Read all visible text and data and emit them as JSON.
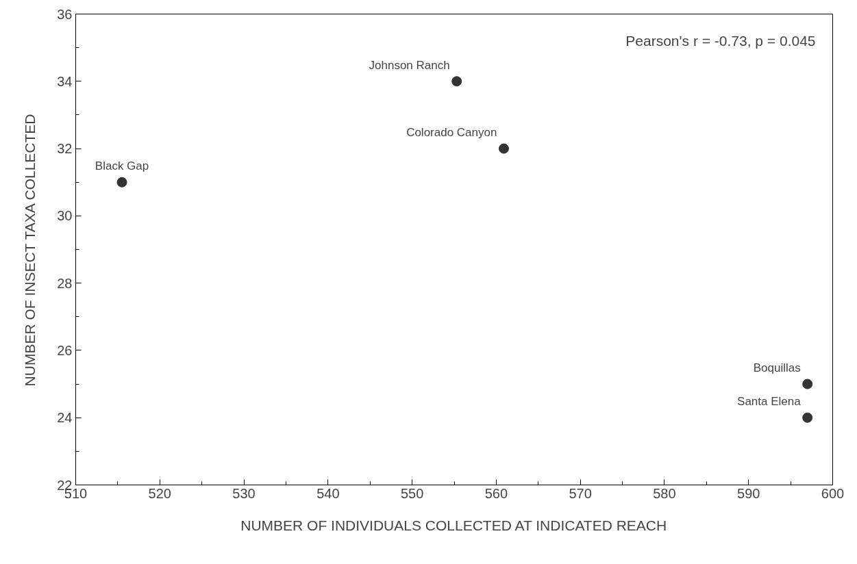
{
  "chart_data": {
    "type": "scatter",
    "xlabel": "NUMBER OF INDIVIDUALS COLLECTED AT INDICATED REACH",
    "ylabel": "NUMBER OF INSECT TAXA COLLECTED",
    "x": [
      515.5,
      555.3,
      560.9,
      597.0,
      597.0
    ],
    "series": [
      {
        "color": "#333333",
        "values": [
          31,
          34,
          32,
          25,
          24
        ]
      }
    ],
    "xlim": [
      510,
      600
    ],
    "xticks": [
      510,
      520,
      530,
      540,
      550,
      560,
      570,
      580,
      590,
      600
    ],
    "ylim": [
      22,
      36
    ],
    "yticks": [
      22,
      24,
      26,
      28,
      30,
      32,
      34,
      36
    ],
    "grid": false,
    "marker": "circle",
    "annotations": [
      "Pearson's r = -0.73, p = 0.045",
      {
        "text": "Black Gap",
        "x": 515.5,
        "y": 31
      },
      {
        "text": "Johnson Ranch",
        "x": 555.3,
        "y": 34
      },
      {
        "text": "Colorado Canyon",
        "x": 560.9,
        "y": 32
      },
      {
        "text": "Boquillas",
        "x": 597.0,
        "y": 25
      },
      {
        "text": "Santa Elena",
        "x": 597.0,
        "y": 24
      }
    ]
  }
}
